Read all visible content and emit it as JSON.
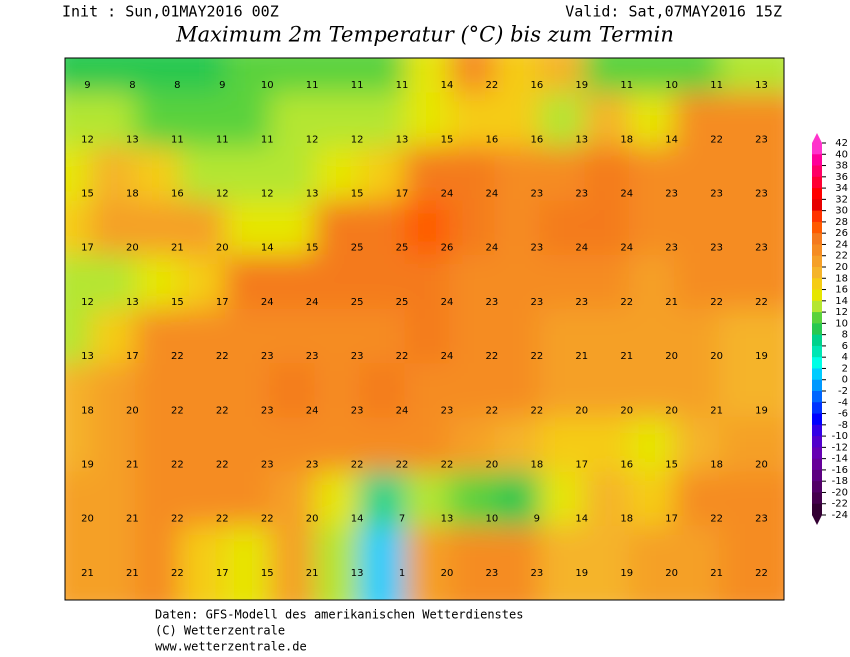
{
  "header": {
    "init": "Init : Sun,01MAY2016 00Z",
    "valid": "Valid: Sat,07MAY2016 15Z",
    "title": "Maximum 2m Temperatur (°C) bis zum Termin"
  },
  "map": {
    "grid": [
      [
        9,
        8,
        8,
        9,
        10,
        11,
        11,
        11,
        14,
        22,
        16,
        19,
        11,
        10,
        11,
        13
      ],
      [
        12,
        13,
        11,
        11,
        11,
        12,
        12,
        13,
        15,
        16,
        16,
        13,
        18,
        14,
        22,
        23
      ],
      [
        15,
        18,
        16,
        12,
        12,
        13,
        15,
        17,
        24,
        24,
        23,
        23,
        24,
        23,
        23,
        23
      ],
      [
        17,
        20,
        21,
        20,
        14,
        15,
        25,
        25,
        26,
        24,
        23,
        24,
        24,
        23,
        23,
        23
      ],
      [
        12,
        13,
        15,
        17,
        24,
        24,
        25,
        25,
        24,
        23,
        23,
        23,
        22,
        21,
        22,
        22
      ],
      [
        13,
        17,
        22,
        22,
        23,
        23,
        23,
        22,
        24,
        22,
        22,
        21,
        21,
        20,
        20,
        19
      ],
      [
        18,
        20,
        22,
        22,
        23,
        24,
        23,
        24,
        23,
        22,
        22,
        20,
        20,
        20,
        21,
        19
      ],
      [
        19,
        21,
        22,
        22,
        23,
        23,
        22,
        22,
        22,
        20,
        18,
        17,
        16,
        15,
        18,
        20
      ],
      [
        20,
        21,
        22,
        22,
        22,
        20,
        14,
        7,
        13,
        10,
        9,
        14,
        18,
        17,
        22,
        23
      ],
      [
        21,
        21,
        22,
        17,
        15,
        21,
        13,
        1,
        20,
        23,
        23,
        19,
        19,
        20,
        21,
        22
      ]
    ]
  },
  "colorbar": {
    "ticks": [
      42,
      40,
      38,
      36,
      34,
      32,
      30,
      28,
      26,
      24,
      22,
      20,
      18,
      16,
      14,
      12,
      10,
      8,
      6,
      4,
      2,
      0,
      -2,
      -4,
      -6,
      -8,
      -10,
      -12,
      -14,
      -16,
      -18,
      -20,
      -22,
      -24
    ],
    "colors": [
      "#ff33cc",
      "#ff0099",
      "#ff0066",
      "#ff0033",
      "#ff0000",
      "#e60000",
      "#ff3300",
      "#ff5a00",
      "#f47a1e",
      "#f58c22",
      "#f5a028",
      "#f5b42a",
      "#f5cc14",
      "#e6e600",
      "#b4e632",
      "#5ad23c",
      "#28c850",
      "#00d28c",
      "#00e6b4",
      "#00ffe6",
      "#00ccff",
      "#0099ff",
      "#0066ff",
      "#0033ff",
      "#0000ff",
      "#3300e6",
      "#5200cc",
      "#6600b3",
      "#660099",
      "#5c0080",
      "#520066",
      "#45004d",
      "#330033"
    ]
  },
  "footer": {
    "line1": "Daten: GFS-Modell des amerikanischen Wetterdienstes",
    "line2": "(C) Wetterzentrale",
    "line3": "www.wetterzentrale.de"
  }
}
